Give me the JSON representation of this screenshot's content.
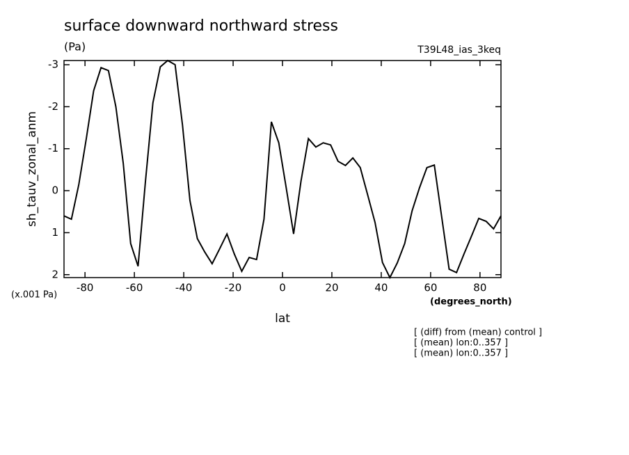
{
  "chart_data": {
    "type": "line",
    "title": "surface downward northward stress",
    "subtitle": "(Pa)",
    "run_label": "T39L48_ias_3keq",
    "y_label": "sh_tauv_zonal_anm",
    "y_unit": "(x.001 Pa)",
    "x_unit": "(degrees_north)",
    "x_label": "lat",
    "notes": [
      "[ (diff) from (mean) control ]",
      "[ (mean) lon:0..357 ]",
      "[ (mean) lon:0..357 ]"
    ],
    "x": [
      -88.5,
      -85.5,
      -82.5,
      -79.5,
      -76.5,
      -73.5,
      -70.5,
      -67.5,
      -64.5,
      -61.5,
      -58.5,
      -55.5,
      -52.5,
      -49.5,
      -46.5,
      -43.5,
      -40.5,
      -37.5,
      -34.5,
      -31.5,
      -28.5,
      -25.5,
      -22.5,
      -19.5,
      -16.5,
      -13.5,
      -10.5,
      -7.5,
      -4.5,
      -1.5,
      1.5,
      4.5,
      7.5,
      10.5,
      13.5,
      16.5,
      19.5,
      22.5,
      25.5,
      28.5,
      31.5,
      34.5,
      37.5,
      40.5,
      43.5,
      46.5,
      49.5,
      52.5,
      55.5,
      58.5,
      61.5,
      64.5,
      67.5,
      70.5,
      73.5,
      76.5,
      79.5,
      82.5,
      85.5,
      88.5
    ],
    "series": [
      {
        "color": "#000000",
        "values": [
          0.6,
          0.68,
          -0.15,
          -1.23,
          -2.38,
          -2.93,
          -2.86,
          -2.0,
          -0.65,
          1.26,
          1.8,
          -0.23,
          -2.09,
          -2.95,
          -3.1,
          -3.0,
          -1.56,
          0.23,
          1.14,
          1.46,
          1.74,
          1.39,
          1.03,
          1.51,
          1.92,
          1.59,
          1.64,
          0.68,
          -1.64,
          -1.14,
          -0.07,
          1.03,
          -0.23,
          -1.24,
          -1.04,
          -1.14,
          -1.09,
          -0.7,
          -0.6,
          -0.78,
          -0.55,
          0.1,
          0.76,
          1.71,
          2.07,
          1.72,
          1.26,
          0.48,
          -0.07,
          -0.55,
          -0.61,
          0.63,
          1.87,
          1.95,
          1.51,
          1.09,
          0.66,
          0.73,
          0.91,
          0.6
        ]
      }
    ],
    "xlim": [
      -88.5,
      88.5
    ],
    "ylim": [
      2.07,
      -3.1
    ],
    "xticks": [
      -80,
      -60,
      -40,
      -20,
      0,
      20,
      40,
      60,
      80
    ],
    "yticks": [
      -3,
      -2,
      -1,
      0,
      1,
      2
    ]
  }
}
